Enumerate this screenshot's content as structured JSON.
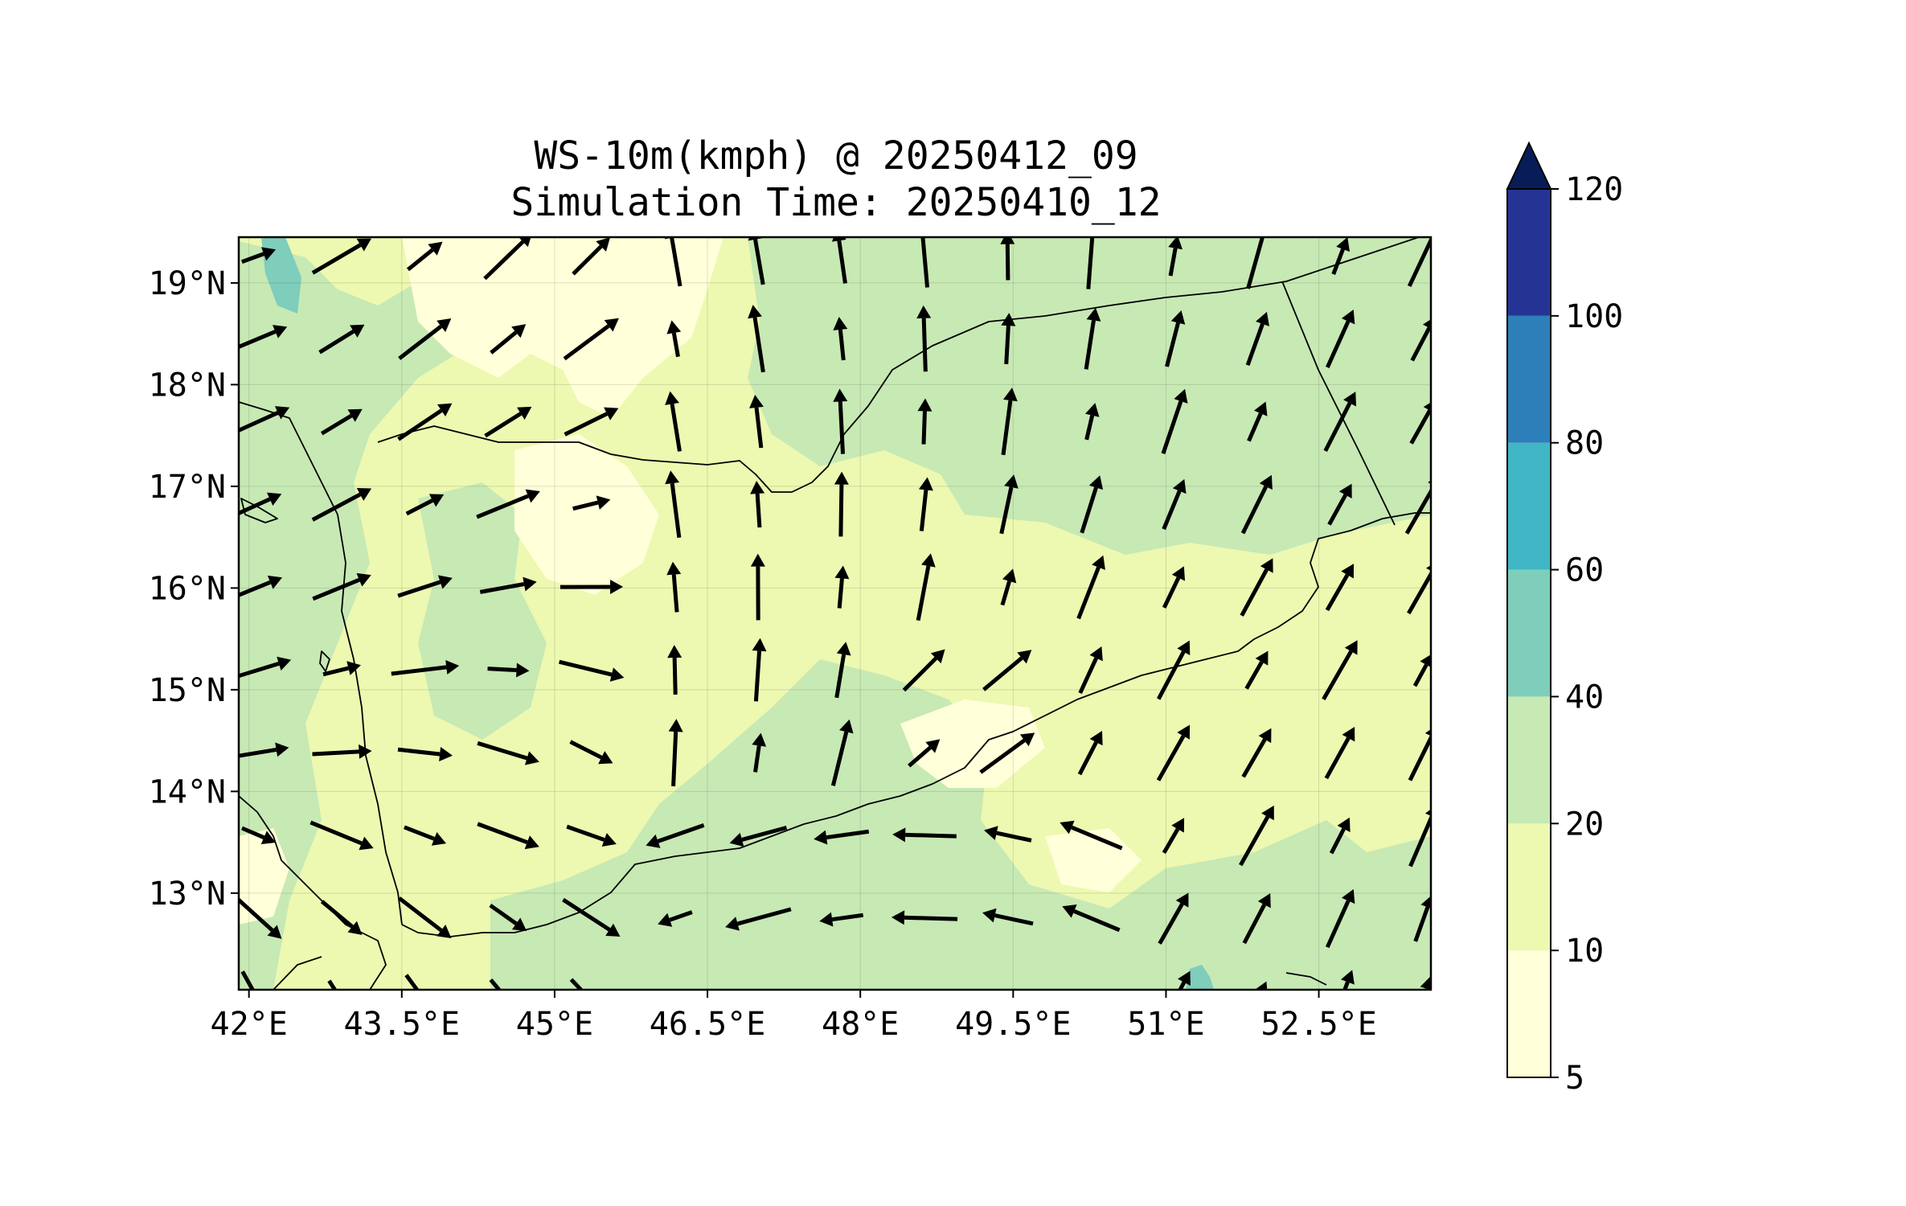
{
  "title": {
    "line1": "WS-10m(kmph) @ 20250412_09",
    "line2": "Simulation Time: 20250410_12"
  },
  "map": {
    "lon_range": [
      41.9,
      53.6
    ],
    "lat_range": [
      12.05,
      19.45
    ],
    "x_tick_labels": [
      "42°E",
      "43.5°E",
      "45°E",
      "46.5°E",
      "48°E",
      "49.5°E",
      "51°E",
      "52.5°E"
    ],
    "y_tick_labels": [
      "19°N",
      "18°N",
      "17°N",
      "16°N",
      "15°N",
      "14°N",
      "13°N"
    ],
    "colors": {
      "lvl_5_10": "#ffffd9",
      "lvl_10_20": "#edf8b1",
      "lvl_20_40": "#c7e9b4",
      "lvl_40_60": "#7fcdbb",
      "lvl_60_80": "#41b6c4",
      "lvl_80_100": "#2c7fb8",
      "lvl_100_120": "#253494",
      "extend": "#081d58",
      "vectors": "#000000",
      "coastline": "#000000"
    }
  },
  "colorbar": {
    "labels": [
      "5",
      "10",
      "20",
      "40",
      "60",
      "80",
      "100",
      "120"
    ],
    "colors": [
      "#ffffd9",
      "#edf8b1",
      "#c7e9b4",
      "#7fcdbb",
      "#41b6c4",
      "#2c7fb8",
      "#253494"
    ],
    "extend_color": "#081d58",
    "extend": "max"
  }
}
